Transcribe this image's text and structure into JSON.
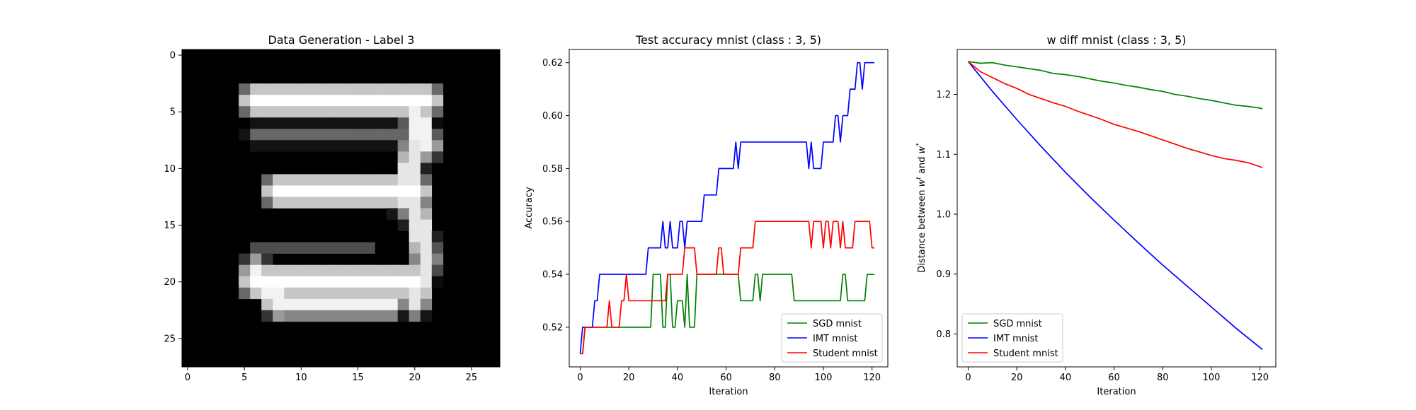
{
  "chart_data": [
    {
      "type": "heatmap",
      "title": "Data Generation - Label 3",
      "xlabel": "",
      "ylabel": "",
      "colormap": "gray",
      "rows": 28,
      "cols": 28,
      "xticks": [
        "0",
        "5",
        "10",
        "15",
        "20",
        "25"
      ],
      "yticks": [
        "0",
        "5",
        "10",
        "15",
        "20",
        "25"
      ],
      "grid": false,
      "strokes": [
        {
          "from": [
            4,
            6
          ],
          "to": [
            4,
            21
          ],
          "width": 1.5,
          "intensity": 1.0
        },
        {
          "from": [
            5,
            20
          ],
          "to": [
            8,
            21
          ],
          "width": 1.3,
          "intensity": 0.95
        },
        {
          "from": [
            7,
            6
          ],
          "to": [
            7,
            20
          ],
          "width": 0.9,
          "intensity": 0.4
        },
        {
          "from": [
            8,
            20
          ],
          "to": [
            13,
            19
          ],
          "width": 1.2,
          "intensity": 0.9
        },
        {
          "from": [
            12,
            8
          ],
          "to": [
            12,
            20
          ],
          "width": 1.5,
          "intensity": 1.0
        },
        {
          "from": [
            13,
            20
          ],
          "to": [
            18,
            21
          ],
          "width": 1.2,
          "intensity": 0.9
        },
        {
          "from": [
            18,
            21
          ],
          "to": [
            22,
            20
          ],
          "width": 1.2,
          "intensity": 0.9
        },
        {
          "from": [
            20,
            6
          ],
          "to": [
            20,
            20
          ],
          "width": 1.5,
          "intensity": 1.0
        },
        {
          "from": [
            19,
            6
          ],
          "to": [
            22,
            8
          ],
          "width": 1.3,
          "intensity": 0.95
        },
        {
          "from": [
            22,
            8
          ],
          "to": [
            22,
            18
          ],
          "width": 1.2,
          "intensity": 0.95
        },
        {
          "from": [
            17,
            6
          ],
          "to": [
            17,
            16
          ],
          "width": 0.8,
          "intensity": 0.3
        }
      ]
    },
    {
      "type": "line",
      "title": "Test accuracy mnist (class : 3, 5)",
      "xlabel": "Iteration",
      "ylabel": "Accuracy",
      "xlim": [
        -4.5,
        126.5
      ],
      "ylim": [
        0.505,
        0.625
      ],
      "xticks": [
        0,
        20,
        40,
        60,
        80,
        100,
        120
      ],
      "yticks": [
        0.52,
        0.54,
        0.56,
        0.58,
        0.6,
        0.62
      ],
      "ytick_labels": [
        "0.52",
        "0.54",
        "0.56",
        "0.58",
        "0.60",
        "0.62"
      ],
      "grid": false,
      "legend_position": "lower-right",
      "series": [
        {
          "name": "SGD mnist",
          "color": "#008000",
          "points": [
            [
              0,
              0.51
            ],
            [
              1,
              0.51
            ],
            [
              2,
              0.52
            ],
            [
              29,
              0.52
            ],
            [
              30,
              0.54
            ],
            [
              33,
              0.54
            ],
            [
              34,
              0.52
            ],
            [
              35,
              0.52
            ],
            [
              36,
              0.54
            ],
            [
              37,
              0.54
            ],
            [
              38,
              0.52
            ],
            [
              39,
              0.52
            ],
            [
              40,
              0.53
            ],
            [
              42,
              0.53
            ],
            [
              43,
              0.52
            ],
            [
              44,
              0.54
            ],
            [
              45,
              0.52
            ],
            [
              47,
              0.52
            ],
            [
              48,
              0.54
            ],
            [
              65,
              0.54
            ],
            [
              66,
              0.53
            ],
            [
              71,
              0.53
            ],
            [
              72,
              0.54
            ],
            [
              73,
              0.54
            ],
            [
              74,
              0.53
            ],
            [
              75,
              0.54
            ],
            [
              87,
              0.54
            ],
            [
              88,
              0.53
            ],
            [
              107,
              0.53
            ],
            [
              108,
              0.54
            ],
            [
              109,
              0.54
            ],
            [
              110,
              0.53
            ],
            [
              117,
              0.53
            ],
            [
              118,
              0.54
            ],
            [
              121,
              0.54
            ]
          ]
        },
        {
          "name": "IMT mnist",
          "color": "#0000ff",
          "points": [
            [
              0,
              0.51
            ],
            [
              1,
              0.52
            ],
            [
              5,
              0.52
            ],
            [
              6,
              0.53
            ],
            [
              7,
              0.53
            ],
            [
              8,
              0.54
            ],
            [
              27,
              0.54
            ],
            [
              28,
              0.55
            ],
            [
              33,
              0.55
            ],
            [
              34,
              0.56
            ],
            [
              35,
              0.55
            ],
            [
              36,
              0.55
            ],
            [
              37,
              0.56
            ],
            [
              38,
              0.55
            ],
            [
              40,
              0.55
            ],
            [
              41,
              0.56
            ],
            [
              42,
              0.56
            ],
            [
              43,
              0.55
            ],
            [
              44,
              0.56
            ],
            [
              50,
              0.56
            ],
            [
              51,
              0.57
            ],
            [
              56,
              0.57
            ],
            [
              57,
              0.58
            ],
            [
              63,
              0.58
            ],
            [
              64,
              0.59
            ],
            [
              65,
              0.58
            ],
            [
              66,
              0.59
            ],
            [
              93,
              0.59
            ],
            [
              94,
              0.58
            ],
            [
              95,
              0.59
            ],
            [
              96,
              0.58
            ],
            [
              99,
              0.58
            ],
            [
              100,
              0.59
            ],
            [
              104,
              0.59
            ],
            [
              105,
              0.6
            ],
            [
              106,
              0.6
            ],
            [
              107,
              0.59
            ],
            [
              108,
              0.6
            ],
            [
              110,
              0.6
            ],
            [
              111,
              0.61
            ],
            [
              113,
              0.61
            ],
            [
              114,
              0.62
            ],
            [
              115,
              0.62
            ],
            [
              116,
              0.61
            ],
            [
              117,
              0.62
            ],
            [
              121,
              0.62
            ]
          ]
        },
        {
          "name": "Student mnist",
          "color": "#ff0000",
          "points": [
            [
              0,
              0.51
            ],
            [
              1,
              0.51
            ],
            [
              2,
              0.52
            ],
            [
              11,
              0.52
            ],
            [
              12,
              0.53
            ],
            [
              13,
              0.52
            ],
            [
              16,
              0.52
            ],
            [
              17,
              0.53
            ],
            [
              18,
              0.53
            ],
            [
              19,
              0.54
            ],
            [
              20,
              0.53
            ],
            [
              35,
              0.53
            ],
            [
              36,
              0.54
            ],
            [
              42,
              0.54
            ],
            [
              43,
              0.55
            ],
            [
              47,
              0.55
            ],
            [
              48,
              0.54
            ],
            [
              56,
              0.54
            ],
            [
              57,
              0.55
            ],
            [
              58,
              0.55
            ],
            [
              59,
              0.54
            ],
            [
              65,
              0.54
            ],
            [
              66,
              0.55
            ],
            [
              71,
              0.55
            ],
            [
              72,
              0.56
            ],
            [
              94,
              0.56
            ],
            [
              95,
              0.55
            ],
            [
              96,
              0.56
            ],
            [
              99,
              0.56
            ],
            [
              100,
              0.55
            ],
            [
              101,
              0.56
            ],
            [
              102,
              0.56
            ],
            [
              103,
              0.55
            ],
            [
              104,
              0.56
            ],
            [
              106,
              0.56
            ],
            [
              107,
              0.55
            ],
            [
              108,
              0.56
            ],
            [
              109,
              0.55
            ],
            [
              112,
              0.55
            ],
            [
              113,
              0.56
            ],
            [
              119,
              0.56
            ],
            [
              120,
              0.55
            ],
            [
              121,
              0.55
            ]
          ]
        }
      ]
    },
    {
      "type": "line",
      "title": "w diff mnist (class : 3, 5)",
      "xlabel": "Iteration",
      "ylabel_prefix": "Distance between ",
      "ylabel_w": "w",
      "ylabel_sup1": "t",
      "ylabel_and": " and ",
      "ylabel_sup2": "*",
      "xlim": [
        -4.5,
        126.5
      ],
      "ylim": [
        0.745,
        1.275
      ],
      "xticks": [
        0,
        20,
        40,
        60,
        80,
        100,
        120
      ],
      "yticks": [
        0.8,
        0.9,
        1.0,
        1.1,
        1.2
      ],
      "ytick_labels": [
        "0.8",
        "0.9",
        "1.0",
        "1.1",
        "1.2"
      ],
      "grid": false,
      "legend_position": "lower-left",
      "series": [
        {
          "name": "SGD mnist",
          "color": "#008000",
          "points": [
            [
              0,
              1.255
            ],
            [
              5,
              1.252
            ],
            [
              10,
              1.253
            ],
            [
              15,
              1.249
            ],
            [
              20,
              1.246
            ],
            [
              25,
              1.243
            ],
            [
              30,
              1.24
            ],
            [
              35,
              1.235
            ],
            [
              40,
              1.233
            ],
            [
              45,
              1.23
            ],
            [
              50,
              1.226
            ],
            [
              55,
              1.222
            ],
            [
              60,
              1.219
            ],
            [
              65,
              1.215
            ],
            [
              70,
              1.212
            ],
            [
              75,
              1.208
            ],
            [
              80,
              1.205
            ],
            [
              85,
              1.2
            ],
            [
              90,
              1.197
            ],
            [
              95,
              1.193
            ],
            [
              100,
              1.19
            ],
            [
              105,
              1.186
            ],
            [
              110,
              1.182
            ],
            [
              115,
              1.18
            ],
            [
              120,
              1.177
            ],
            [
              121,
              1.176
            ]
          ]
        },
        {
          "name": "IMT mnist",
          "color": "#0000ff",
          "points": [
            [
              0,
              1.255
            ],
            [
              10,
              1.205
            ],
            [
              20,
              1.158
            ],
            [
              30,
              1.113
            ],
            [
              40,
              1.07
            ],
            [
              50,
              1.029
            ],
            [
              60,
              0.99
            ],
            [
              70,
              0.952
            ],
            [
              80,
              0.915
            ],
            [
              90,
              0.88
            ],
            [
              100,
              0.845
            ],
            [
              110,
              0.81
            ],
            [
              121,
              0.774
            ]
          ]
        },
        {
          "name": "Student mnist",
          "color": "#ff0000",
          "points": [
            [
              0,
              1.255
            ],
            [
              5,
              1.238
            ],
            [
              10,
              1.228
            ],
            [
              15,
              1.218
            ],
            [
              20,
              1.21
            ],
            [
              25,
              1.2
            ],
            [
              30,
              1.193
            ],
            [
              35,
              1.186
            ],
            [
              40,
              1.18
            ],
            [
              45,
              1.172
            ],
            [
              50,
              1.165
            ],
            [
              55,
              1.158
            ],
            [
              60,
              1.15
            ],
            [
              65,
              1.144
            ],
            [
              70,
              1.138
            ],
            [
              75,
              1.131
            ],
            [
              80,
              1.124
            ],
            [
              85,
              1.117
            ],
            [
              90,
              1.11
            ],
            [
              95,
              1.104
            ],
            [
              100,
              1.098
            ],
            [
              105,
              1.093
            ],
            [
              110,
              1.09
            ],
            [
              115,
              1.086
            ],
            [
              121,
              1.078
            ]
          ]
        }
      ]
    }
  ]
}
